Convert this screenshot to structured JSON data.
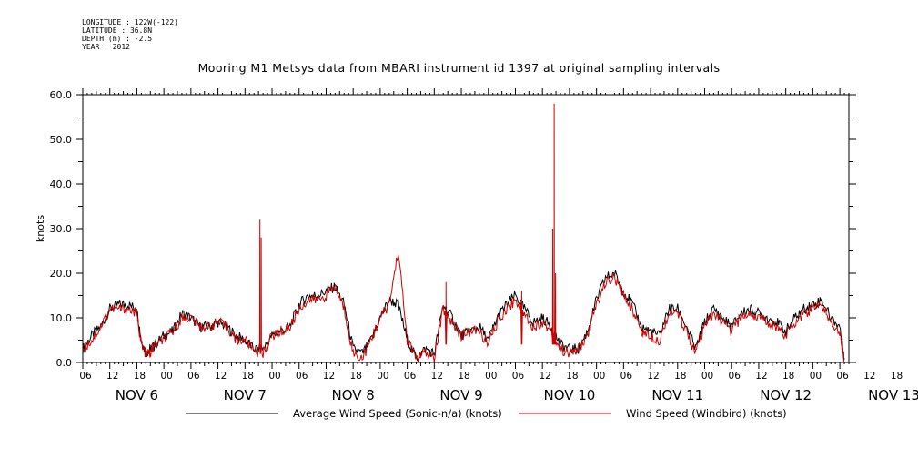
{
  "meta": {
    "longitude": "LONGITUDE : 122W(-122)",
    "latitude": "LATITUDE : 36.8N",
    "depth": "DEPTH (m) : -2.5",
    "year": "YEAR : 2012"
  },
  "chart_data": {
    "type": "line",
    "title": "Mooring M1 Metsys data from MBARI instrument id 1397 at original sampling intervals",
    "ylabel": "knots",
    "xlabel": "",
    "ylim": [
      0,
      60
    ],
    "yticks": [
      "0.0",
      "10.0",
      "20.0",
      "30.0",
      "40.0",
      "50.0",
      "60.0"
    ],
    "xlim_hours": [
      0,
      170
    ],
    "hour_tick_labels": [
      "06",
      "12",
      "18",
      "00",
      "06",
      "12",
      "18",
      "00",
      "06",
      "12",
      "18",
      "00",
      "06",
      "12",
      "18",
      "00",
      "06",
      "12",
      "18",
      "00",
      "06",
      "12",
      "18",
      "00",
      "06",
      "12",
      "18",
      "00",
      "06",
      "12",
      "18",
      "00",
      "06"
    ],
    "day_labels": [
      "NOV 6",
      "NOV 7",
      "NOV 8",
      "NOV 9",
      "NOV 10",
      "NOV 11",
      "NOV 12",
      "NOV 13"
    ],
    "grid": false,
    "legend_position": "bottom",
    "series": [
      {
        "name": "Average Wind Speed (Sonic-n/a) (knots)",
        "color": "#000000",
        "x_hours": [
          0,
          2,
          4,
          6,
          8,
          10,
          12,
          13,
          14,
          15,
          16,
          18,
          20,
          22,
          24,
          26,
          28,
          30,
          32,
          34,
          36,
          38,
          40,
          42,
          44,
          46,
          48,
          50,
          52,
          54,
          56,
          58,
          60,
          62,
          64,
          66,
          68,
          70,
          72,
          74,
          76,
          78,
          80,
          82,
          84,
          86,
          88,
          90,
          92,
          94,
          96,
          98,
          100,
          102,
          104,
          106,
          108,
          110,
          112,
          114,
          116,
          118,
          120,
          122,
          124,
          126,
          128,
          130,
          132,
          134,
          136,
          138,
          140,
          142,
          144,
          146,
          148,
          150,
          152,
          154,
          156,
          158,
          160,
          162,
          164,
          166,
          168,
          169
        ],
        "values": [
          3,
          6,
          8,
          12,
          13,
          13,
          12,
          5,
          2,
          3,
          4,
          6,
          7,
          11,
          10,
          8,
          8,
          9,
          8,
          6,
          5,
          3,
          3,
          6,
          7,
          8,
          13,
          15,
          15,
          16,
          17,
          13,
          3,
          2,
          5,
          10,
          14,
          13,
          5,
          1,
          3,
          2,
          13,
          10,
          6,
          7,
          8,
          5,
          10,
          13,
          15,
          12,
          9,
          10,
          8,
          4,
          3,
          3,
          7,
          14,
          19,
          20,
          16,
          13,
          8,
          7,
          6,
          12,
          12,
          8,
          3,
          9,
          12,
          10,
          8,
          11,
          12,
          11,
          10,
          9,
          7,
          10,
          12,
          13,
          14,
          10,
          8,
          1
        ],
        "spikes": []
      },
      {
        "name": "Wind Speed (Windbird) (knots)",
        "color": "#cc0000",
        "x_hours": [
          0,
          2,
          4,
          6,
          8,
          10,
          12,
          13,
          14,
          15,
          16,
          18,
          20,
          22,
          24,
          26,
          28,
          30,
          32,
          34,
          36,
          38,
          40,
          42,
          44,
          46,
          48,
          50,
          52,
          54,
          56,
          58,
          60,
          62,
          64,
          66,
          68,
          70,
          72,
          74,
          76,
          78,
          80,
          82,
          84,
          86,
          88,
          90,
          92,
          94,
          96,
          98,
          100,
          102,
          104,
          106,
          108,
          110,
          112,
          114,
          116,
          118,
          120,
          122,
          124,
          126,
          128,
          130,
          132,
          134,
          136,
          138,
          140,
          142,
          144,
          146,
          148,
          150,
          152,
          154,
          156,
          158,
          160,
          162,
          164,
          166,
          168,
          169
        ],
        "values": [
          3,
          5,
          8,
          12,
          12,
          12,
          11,
          4,
          2,
          2,
          4,
          5,
          7,
          10,
          10,
          8,
          8,
          9,
          8,
          5,
          5,
          3,
          2,
          6,
          7,
          8,
          12,
          14,
          14,
          15,
          17,
          12,
          2,
          1,
          5,
          10,
          13,
          25,
          5,
          1,
          2,
          1,
          12,
          9,
          6,
          7,
          7,
          4,
          9,
          12,
          14,
          11,
          8,
          9,
          7,
          3,
          2,
          3,
          6,
          13,
          18,
          19,
          15,
          12,
          7,
          6,
          5,
          11,
          11,
          7,
          2,
          8,
          11,
          9,
          7,
          10,
          11,
          10,
          9,
          8,
          6,
          9,
          11,
          12,
          13,
          9,
          7,
          0
        ],
        "spikes": [
          [
            39.3,
            32
          ],
          [
            39.6,
            28
          ],
          [
            80.6,
            18
          ],
          [
            97.4,
            16
          ],
          [
            104.3,
            30
          ],
          [
            104.6,
            58
          ],
          [
            104.9,
            20
          ]
        ]
      }
    ]
  }
}
